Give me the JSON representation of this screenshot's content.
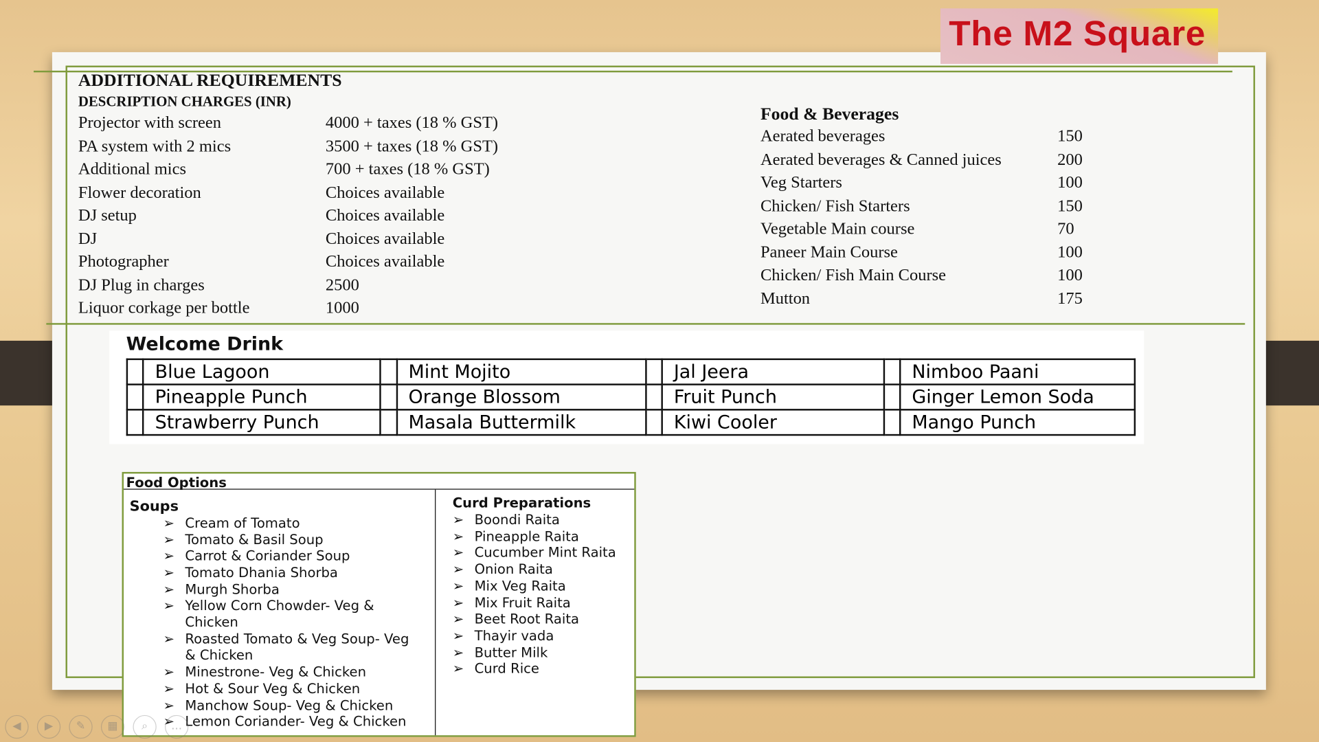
{
  "logo": {
    "text": "The M2 Square"
  },
  "additional": {
    "title": "ADDITIONAL REQUIREMENTS",
    "subtitle": "DESCRIPTION CHARGES (INR)",
    "rows": [
      {
        "item": "Projector with screen",
        "charge": "4000 + taxes (18 % GST)"
      },
      {
        "item": "PA system with 2 mics",
        "charge": "3500 + taxes (18 % GST)"
      },
      {
        "item": "Additional mics",
        "charge": "700 + taxes (18 % GST)"
      },
      {
        "item": "Flower decoration",
        "charge": "Choices available"
      },
      {
        "item": "DJ setup",
        "charge": "Choices available"
      },
      {
        "item": "DJ",
        "charge": "Choices available"
      },
      {
        "item": "Photographer",
        "charge": "Choices available"
      },
      {
        "item": "DJ Plug in charges",
        "charge": "2500"
      },
      {
        "item": "Liquor corkage per bottle",
        "charge": "1000"
      }
    ]
  },
  "food_beverages": {
    "title": "Food & Beverages",
    "rows": [
      {
        "item": "Aerated beverages",
        "price": "150"
      },
      {
        "item": "Aerated beverages & Canned juices",
        "price": "200"
      },
      {
        "item": "Veg Starters",
        "price": "100"
      },
      {
        "item": "Chicken/ Fish Starters",
        "price": "150"
      },
      {
        "item": "Vegetable Main course",
        "price": "70"
      },
      {
        "item": "Paneer Main Course",
        "price": "100"
      },
      {
        "item": "Chicken/ Fish Main Course",
        "price": "100"
      },
      {
        "item": "Mutton",
        "price": "175"
      }
    ]
  },
  "welcome_drink": {
    "title": "Welcome Drink",
    "rows": [
      [
        "Blue Lagoon",
        "Mint Mojito",
        "Jal Jeera",
        "Nimboo Paani"
      ],
      [
        "Pineapple Punch",
        "Orange Blossom",
        "Fruit Punch",
        "Ginger Lemon Soda"
      ],
      [
        "Strawberry Punch",
        "Masala Buttermilk",
        "Kiwi Cooler",
        "Mango Punch"
      ]
    ]
  },
  "food_options": {
    "title": "Food Options",
    "soups_title": "Soups",
    "soups": [
      "Cream of Tomato",
      "Tomato & Basil Soup",
      "Carrot & Coriander Soup",
      "Tomato Dhania Shorba",
      "Murgh Shorba",
      "Yellow Corn Chowder- Veg &",
      "Chicken",
      "Roasted Tomato & Veg Soup- Veg",
      "& Chicken",
      "Minestrone- Veg & Chicken",
      "Hot & Sour Veg & Chicken",
      "Manchow Soup- Veg & Chicken",
      "Lemon Coriander- Veg & Chicken"
    ],
    "curd_title": "Curd Preparations",
    "curd": [
      "Boondi Raita",
      "Pineapple Raita",
      "Cucumber Mint Raita",
      "Onion Raita",
      "Mix Veg Raita",
      "Mix Fruit Raita",
      "Beet Root Raita",
      "Thayir vada",
      "Butter Milk",
      "Curd Rice"
    ],
    "bullet": "➢"
  },
  "slideshow_controls": [
    "previous-icon",
    "next-icon",
    "pen-icon",
    "slides-grid-icon",
    "zoom-icon",
    "more-icon"
  ],
  "colors": {
    "accent_green": "#7f9b3c",
    "logo_red": "#c8101a"
  }
}
